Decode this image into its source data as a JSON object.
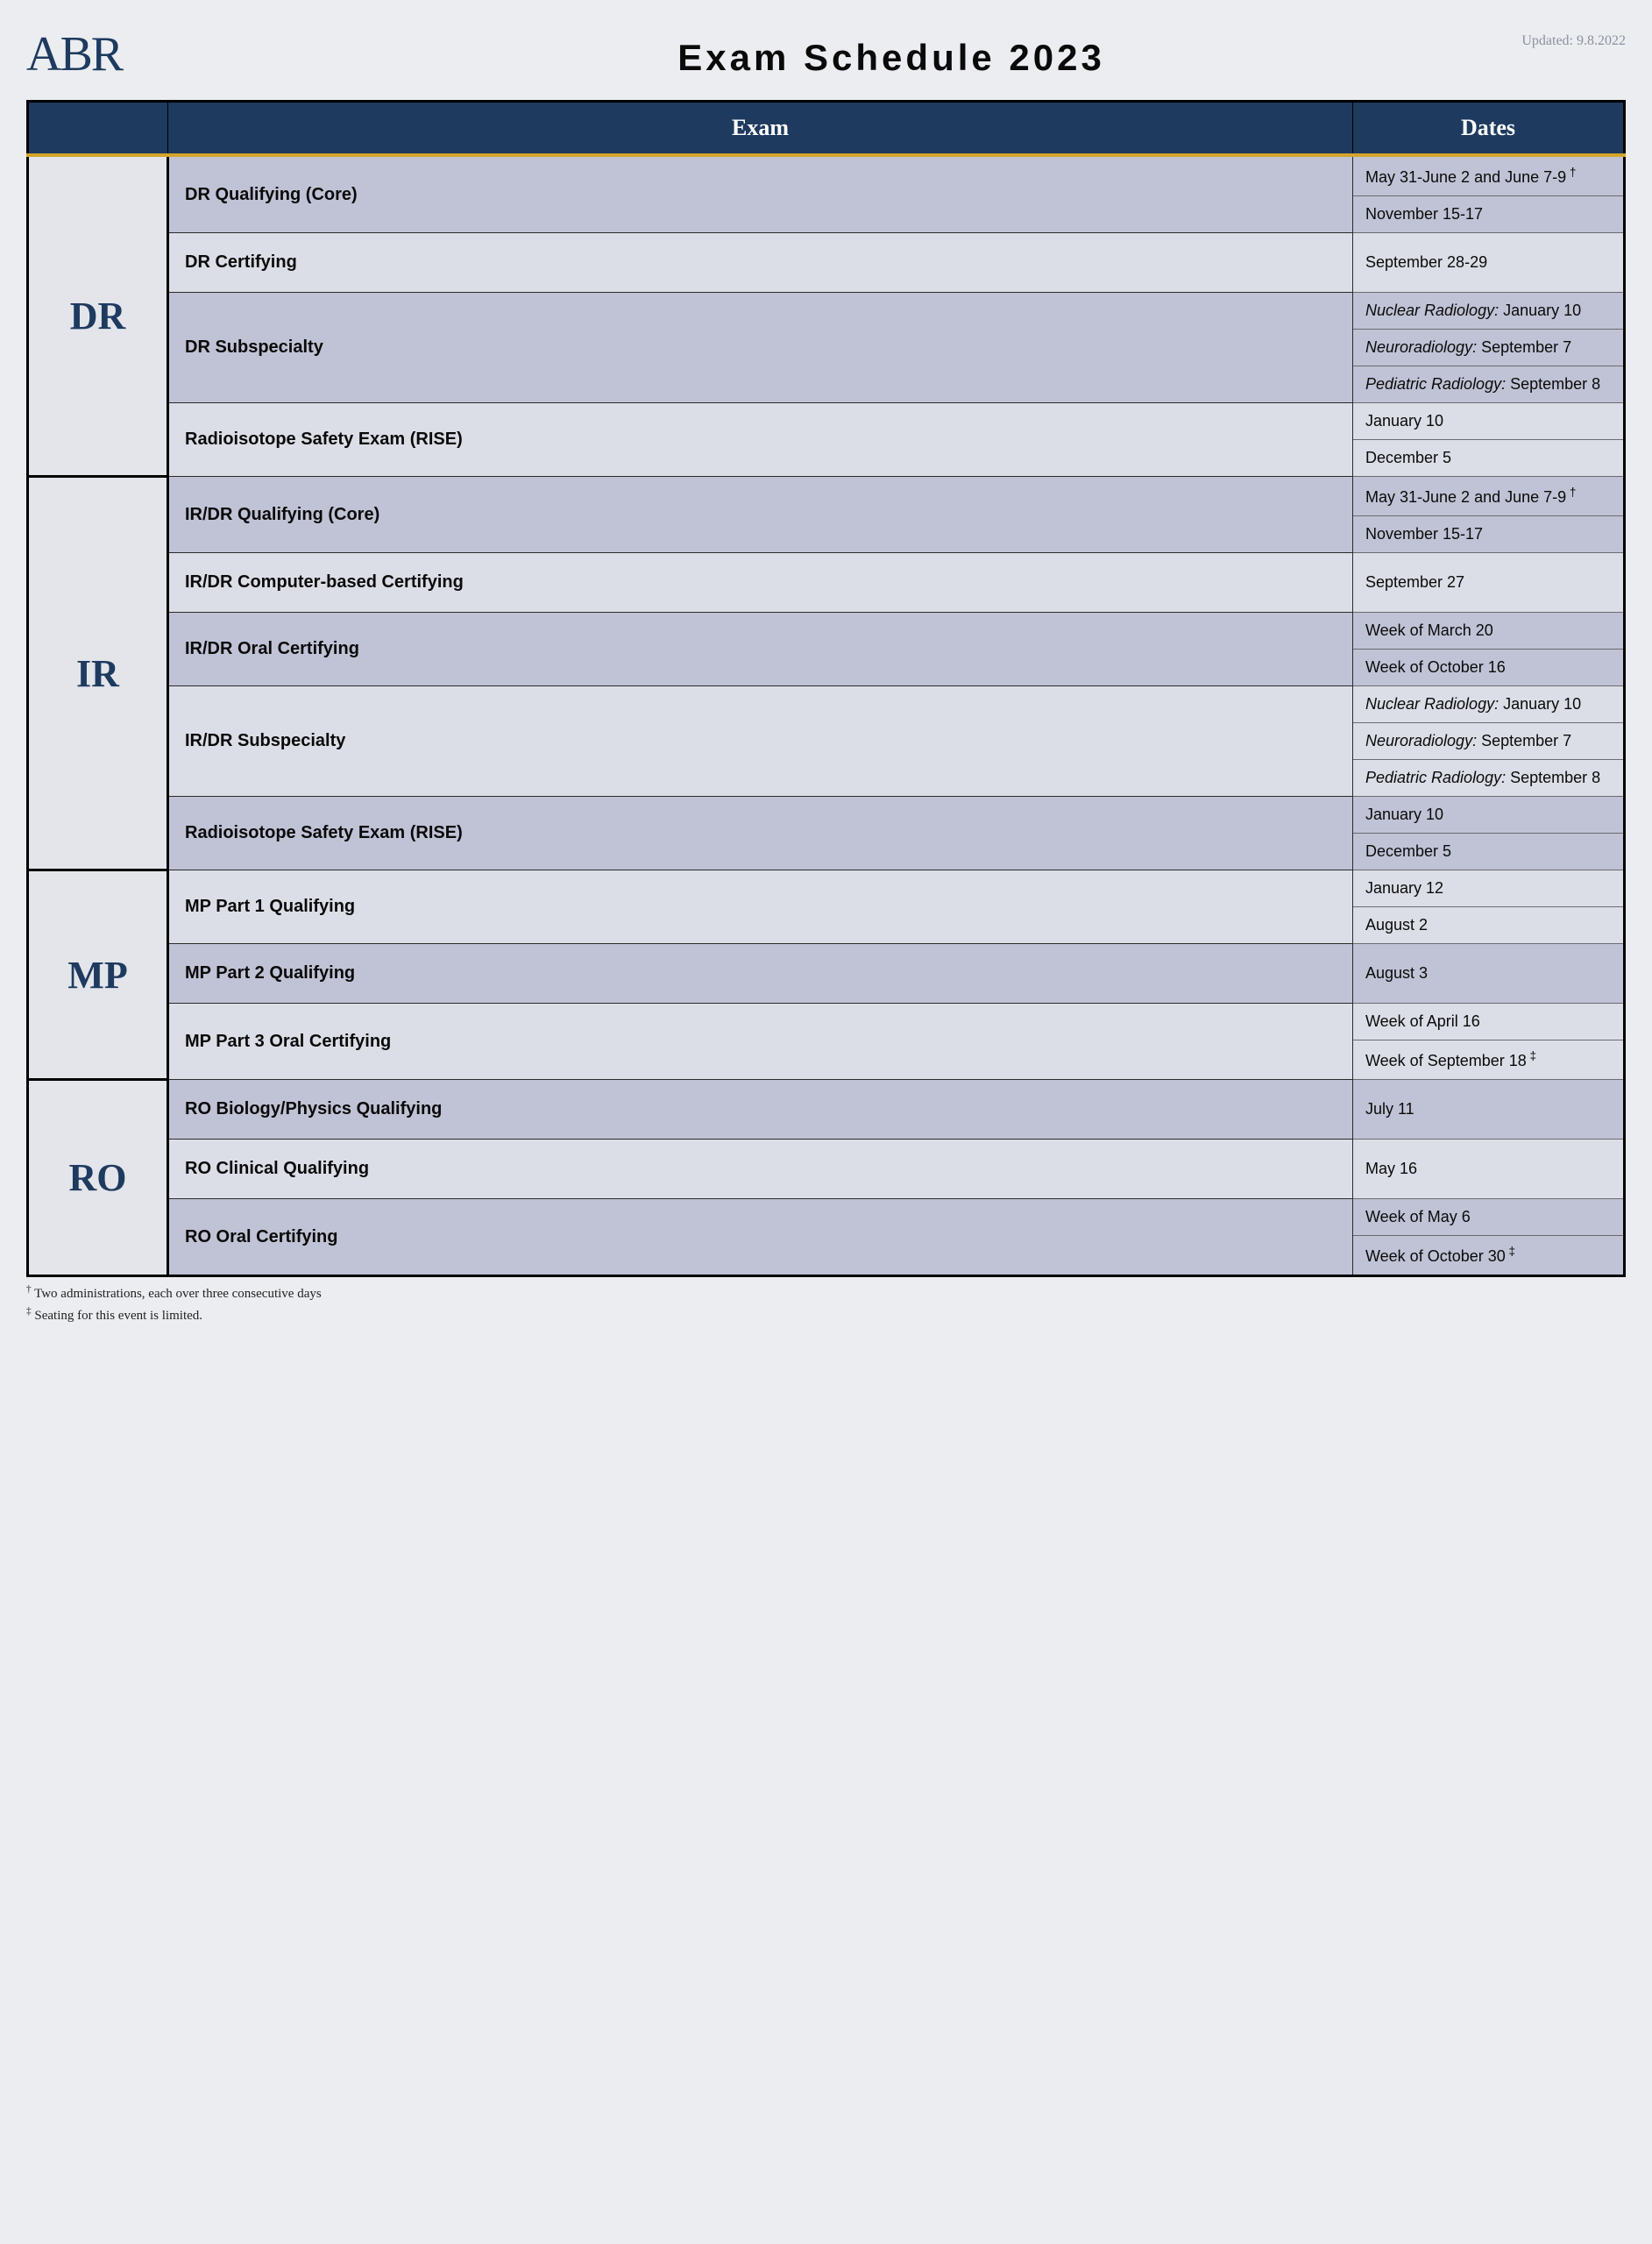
{
  "header": {
    "logo": "ABR",
    "title": "Exam Schedule 2023",
    "updated": "Updated: 9.8.2022"
  },
  "columns": {
    "exam": "Exam",
    "dates": "Dates"
  },
  "sections": [
    {
      "code": "DR",
      "rows": [
        {
          "exam": "DR Qualifying (Core)",
          "shade": "a",
          "dates": [
            {
              "text": "May 31-June 2 and June 7-9",
              "dagger": true
            },
            {
              "text": "November 15-17"
            }
          ]
        },
        {
          "exam": "DR Certifying",
          "shade": "b",
          "dates": [
            {
              "text": "September 28-29"
            }
          ]
        },
        {
          "exam": "DR Subspecialty",
          "shade": "a",
          "dates": [
            {
              "emph": "Nuclear Radiology:",
              "text": " January 10"
            },
            {
              "emph": "Neuroradiology:",
              "text": " September 7"
            },
            {
              "emph": "Pediatric Radiology:",
              "text": " September 8"
            }
          ]
        },
        {
          "exam": "Radioisotope Safety Exam (RISE)",
          "shade": "b",
          "dates": [
            {
              "text": "January 10"
            },
            {
              "text": "December 5"
            }
          ]
        }
      ]
    },
    {
      "code": "IR",
      "rows": [
        {
          "exam": "IR/DR Qualifying (Core)",
          "shade": "a",
          "dates": [
            {
              "text": "May 31-June 2 and June 7-9",
              "dagger": true
            },
            {
              "text": "November 15-17"
            }
          ]
        },
        {
          "exam": "IR/DR Computer-based Certifying",
          "shade": "b",
          "dates": [
            {
              "text": "September 27"
            }
          ]
        },
        {
          "exam": "IR/DR Oral Certifying",
          "shade": "a",
          "dates": [
            {
              "text": "Week of March 20"
            },
            {
              "text": "Week of October 16"
            }
          ]
        },
        {
          "exam": "IR/DR Subspecialty",
          "shade": "b",
          "dates": [
            {
              "emph": "Nuclear Radiology:",
              "text": " January 10"
            },
            {
              "emph": "Neuroradiology:",
              "text": " September 7"
            },
            {
              "emph": "Pediatric Radiology:",
              "text": " September 8"
            }
          ]
        },
        {
          "exam": "Radioisotope Safety Exam (RISE)",
          "shade": "a",
          "dates": [
            {
              "text": "January 10"
            },
            {
              "text": "December 5"
            }
          ]
        }
      ]
    },
    {
      "code": "MP",
      "rows": [
        {
          "exam": "MP Part 1 Qualifying",
          "shade": "b",
          "dates": [
            {
              "text": "January 12"
            },
            {
              "text": "August 2"
            }
          ]
        },
        {
          "exam": "MP Part 2 Qualifying",
          "shade": "a",
          "dates": [
            {
              "text": "August 3"
            }
          ]
        },
        {
          "exam": "MP Part 3 Oral Certifying",
          "shade": "b",
          "dates": [
            {
              "text": "Week of April 16"
            },
            {
              "text": "Week of September 18",
              "ddagger": true
            }
          ]
        }
      ]
    },
    {
      "code": "RO",
      "rows": [
        {
          "exam": "RO Biology/Physics Qualifying",
          "shade": "a",
          "dates": [
            {
              "text": "July 11"
            }
          ]
        },
        {
          "exam": "RO Clinical Qualifying",
          "shade": "b",
          "dates": [
            {
              "text": "May 16"
            }
          ]
        },
        {
          "exam": "RO Oral Certifying",
          "shade": "a",
          "dates": [
            {
              "text": "Week of May 6"
            },
            {
              "text": "Week of October 30",
              "ddagger": true
            }
          ]
        }
      ]
    }
  ],
  "footnotes": {
    "dagger": "Two administrations, each over three consecutive days",
    "ddagger": "Seating for this event is limited."
  },
  "style": {
    "header_bg": "#1e3a5f",
    "accent_gold": "#d4a52b",
    "shade_a": "#c0c3d5",
    "shade_b": "#dcdee7",
    "page_bg": "#ecedf1"
  }
}
